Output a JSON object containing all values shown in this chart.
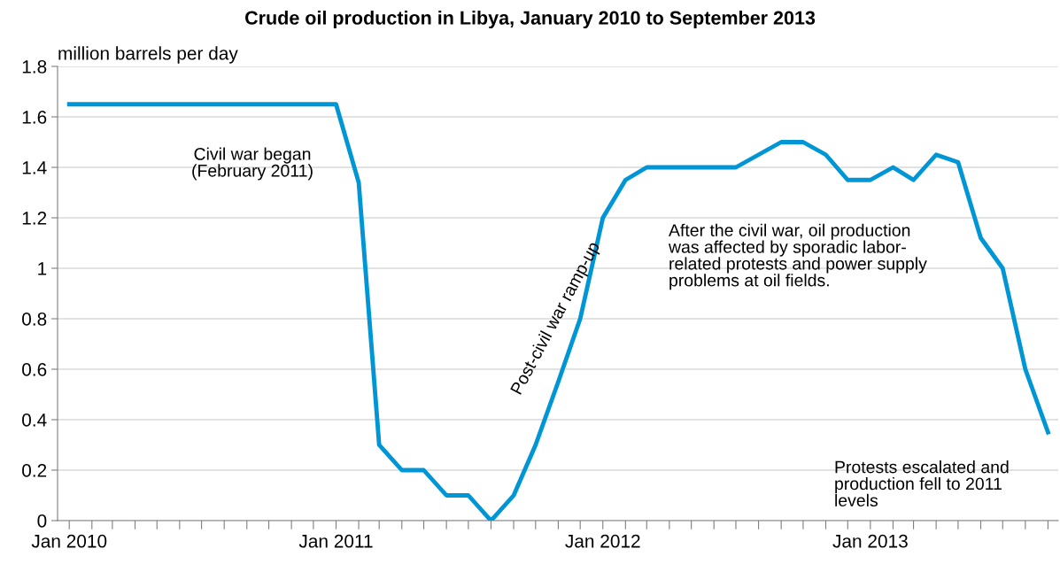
{
  "chart_data": {
    "type": "line",
    "title": "Crude oil production in Libya, January 2010 to September 2013",
    "ylabel": "million barrels per day",
    "x": [
      "2010-01",
      "2010-02",
      "2010-03",
      "2010-04",
      "2010-05",
      "2010-06",
      "2010-07",
      "2010-08",
      "2010-09",
      "2010-10",
      "2010-11",
      "2010-12",
      "2011-01",
      "2011-02",
      "2011-03",
      "2011-04",
      "2011-05",
      "2011-06",
      "2011-07",
      "2011-08",
      "2011-09",
      "2011-10",
      "2011-11",
      "2011-12",
      "2012-01",
      "2012-02",
      "2012-03",
      "2012-04",
      "2012-05",
      "2012-06",
      "2012-07",
      "2012-08",
      "2012-09",
      "2012-10",
      "2012-11",
      "2012-12",
      "2013-01",
      "2013-02",
      "2013-03",
      "2013-04",
      "2013-05",
      "2013-06",
      "2013-07",
      "2013-08",
      "2013-09"
    ],
    "series": [
      {
        "color": "#0096d6",
        "values": [
          1.65,
          1.65,
          1.65,
          1.65,
          1.65,
          1.65,
          1.65,
          1.65,
          1.65,
          1.65,
          1.65,
          1.65,
          1.65,
          1.34,
          0.3,
          0.2,
          0.2,
          0.1,
          0.1,
          0,
          0.1,
          0.3,
          0.55,
          0.8,
          1.2,
          1.35,
          1.4,
          1.4,
          1.4,
          1.4,
          1.4,
          1.45,
          1.5,
          1.5,
          1.45,
          1.35,
          1.35,
          1.4,
          1.35,
          1.45,
          1.42,
          1.12,
          1.0,
          0.6,
          0.35
        ]
      }
    ],
    "xlim": [
      "2009-12-16",
      "2013-09-15"
    ],
    "xticks": [
      {
        "value": "2010-01",
        "label": "Jan 2010"
      },
      {
        "value": "2010-02",
        "label": null
      },
      {
        "value": "2010-03",
        "label": null
      },
      {
        "value": "2010-04",
        "label": null
      },
      {
        "value": "2010-05",
        "label": null
      },
      {
        "value": "2010-06",
        "label": null
      },
      {
        "value": "2010-07",
        "label": null
      },
      {
        "value": "2010-08",
        "label": null
      },
      {
        "value": "2010-09",
        "label": null
      },
      {
        "value": "2010-10",
        "label": null
      },
      {
        "value": "2010-11",
        "label": null
      },
      {
        "value": "2010-12",
        "label": null
      },
      {
        "value": "2011-01",
        "label": "Jan 2011"
      },
      {
        "value": "2011-02",
        "label": null
      },
      {
        "value": "2011-03",
        "label": null
      },
      {
        "value": "2011-04",
        "label": null
      },
      {
        "value": "2011-05",
        "label": null
      },
      {
        "value": "2011-06",
        "label": null
      },
      {
        "value": "2011-07",
        "label": null
      },
      {
        "value": "2011-08",
        "label": null
      },
      {
        "value": "2011-09",
        "label": null
      },
      {
        "value": "2011-10",
        "label": null
      },
      {
        "value": "2011-11",
        "label": null
      },
      {
        "value": "2011-12",
        "label": null
      },
      {
        "value": "2012-01",
        "label": "Jan 2012"
      },
      {
        "value": "2012-02",
        "label": null
      },
      {
        "value": "2012-03",
        "label": null
      },
      {
        "value": "2012-04",
        "label": null
      },
      {
        "value": "2012-05",
        "label": null
      },
      {
        "value": "2012-06",
        "label": null
      },
      {
        "value": "2012-07",
        "label": null
      },
      {
        "value": "2012-08",
        "label": null
      },
      {
        "value": "2012-09",
        "label": null
      },
      {
        "value": "2012-10",
        "label": null
      },
      {
        "value": "2012-11",
        "label": null
      },
      {
        "value": "2012-12",
        "label": null
      },
      {
        "value": "2013-01",
        "label": "Jan 2013"
      },
      {
        "value": "2013-02",
        "label": null
      },
      {
        "value": "2013-03",
        "label": null
      },
      {
        "value": "2013-04",
        "label": null
      },
      {
        "value": "2013-05",
        "label": null
      },
      {
        "value": "2013-06",
        "label": null
      },
      {
        "value": "2013-07",
        "label": null
      },
      {
        "value": "2013-08",
        "label": null
      },
      {
        "value": "2013-09",
        "label": null
      }
    ],
    "ylim": [
      0,
      1.8
    ],
    "yticks": [
      0,
      0.2,
      0.4,
      0.6,
      0.8,
      1,
      1.2,
      1.4,
      1.6,
      1.8
    ],
    "grid": "y",
    "legend": false,
    "marker": "none",
    "line_style": "solid",
    "annotations": [
      "Civil war began\n(February 2011)",
      "Post-civil war ramp-up",
      "After the civil war, oil production\nwas affected by sporadic labor-\nrelated protests and power supply\nproblems at oil fields.",
      "Protests escalated and\nproduction fell to 2011\nlevels"
    ]
  }
}
